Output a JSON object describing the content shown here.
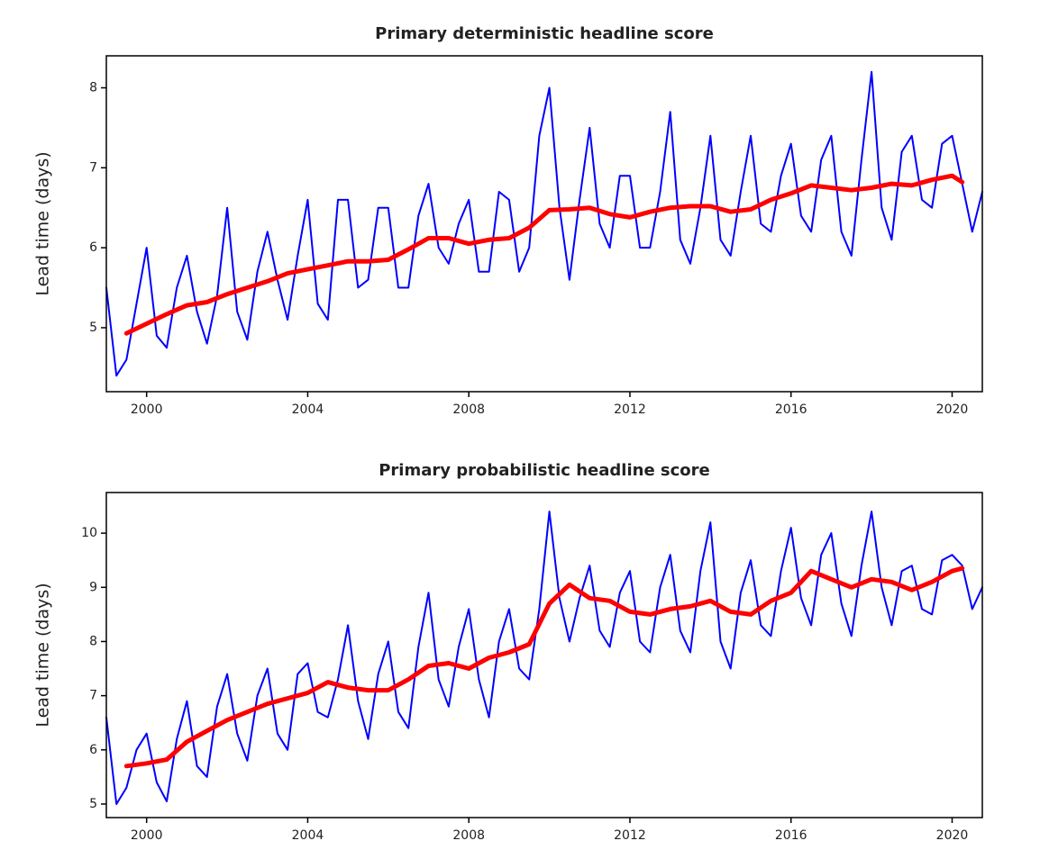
{
  "chart_data": [
    {
      "type": "line",
      "title": "Primary deterministic headline score",
      "ylabel": "Lead time (days)",
      "xlim": [
        1999,
        2020.75
      ],
      "xticks": [
        2000,
        2004,
        2008,
        2012,
        2016,
        2020
      ],
      "ylim": [
        4.2,
        8.4
      ],
      "yticks": [
        5,
        6,
        7,
        8
      ],
      "grid": false,
      "series": [
        {
          "color": "#0000ff",
          "width": 2,
          "x": [
            1999,
            1999.25,
            1999.5,
            1999.75,
            2000,
            2000.25,
            2000.5,
            2000.75,
            2001,
            2001.25,
            2001.5,
            2001.75,
            2002,
            2002.25,
            2002.5,
            2002.75,
            2003,
            2003.25,
            2003.5,
            2003.75,
            2004,
            2004.25,
            2004.5,
            2004.75,
            2005,
            2005.25,
            2005.5,
            2005.75,
            2006,
            2006.25,
            2006.5,
            2006.75,
            2007,
            2007.25,
            2007.5,
            2007.75,
            2008,
            2008.25,
            2008.5,
            2008.75,
            2009,
            2009.25,
            2009.5,
            2009.75,
            2010,
            2010.25,
            2010.5,
            2010.75,
            2011,
            2011.25,
            2011.5,
            2011.75,
            2012,
            2012.25,
            2012.5,
            2012.75,
            2013,
            2013.25,
            2013.5,
            2013.75,
            2014,
            2014.25,
            2014.5,
            2014.75,
            2015,
            2015.25,
            2015.5,
            2015.75,
            2016,
            2016.25,
            2016.5,
            2016.75,
            2017,
            2017.25,
            2017.5,
            2017.75,
            2018,
            2018.25,
            2018.5,
            2018.75,
            2019,
            2019.25,
            2019.5,
            2019.75,
            2020,
            2020.25,
            2020.5,
            2020.75
          ],
          "values": [
            5.5,
            4.4,
            4.6,
            5.3,
            6.0,
            4.9,
            4.75,
            5.5,
            5.9,
            5.2,
            4.8,
            5.4,
            6.5,
            5.2,
            4.85,
            5.7,
            6.2,
            5.6,
            5.1,
            5.9,
            6.6,
            5.3,
            5.1,
            6.6,
            6.6,
            5.5,
            5.6,
            6.5,
            6.5,
            5.5,
            5.5,
            6.4,
            6.8,
            6.0,
            5.8,
            6.3,
            6.6,
            5.7,
            5.7,
            6.7,
            6.6,
            5.7,
            6.0,
            7.4,
            8.0,
            6.5,
            5.6,
            6.6,
            7.5,
            6.3,
            6.0,
            6.9,
            6.9,
            6.0,
            6.0,
            6.7,
            7.7,
            6.1,
            5.8,
            6.5,
            7.4,
            6.1,
            5.9,
            6.7,
            7.4,
            6.3,
            6.2,
            6.9,
            7.3,
            6.4,
            6.2,
            7.1,
            7.4,
            6.2,
            5.9,
            7.1,
            8.2,
            6.5,
            6.1,
            7.2,
            7.4,
            6.6,
            6.5,
            7.3,
            7.4,
            6.8,
            6.2,
            6.7
          ]
        },
        {
          "color": "#ff0000",
          "width": 5,
          "x": [
            1999.5,
            2000,
            2000.5,
            2001,
            2001.5,
            2002,
            2002.5,
            2003,
            2003.5,
            2004,
            2004.5,
            2005,
            2005.5,
            2006,
            2006.5,
            2007,
            2007.5,
            2008,
            2008.5,
            2009,
            2009.5,
            2010,
            2010.5,
            2011,
            2011.5,
            2012,
            2012.5,
            2013,
            2013.5,
            2014,
            2014.5,
            2015,
            2015.5,
            2016,
            2016.5,
            2017,
            2017.5,
            2018,
            2018.5,
            2019,
            2019.5,
            2020,
            2020.25
          ],
          "values": [
            4.93,
            5.05,
            5.17,
            5.28,
            5.32,
            5.42,
            5.5,
            5.58,
            5.68,
            5.73,
            5.78,
            5.83,
            5.83,
            5.85,
            5.98,
            6.12,
            6.12,
            6.05,
            6.1,
            6.12,
            6.25,
            6.47,
            6.48,
            6.5,
            6.42,
            6.38,
            6.45,
            6.5,
            6.52,
            6.52,
            6.45,
            6.48,
            6.6,
            6.68,
            6.78,
            6.75,
            6.72,
            6.75,
            6.8,
            6.78,
            6.85,
            6.9,
            6.82
          ]
        }
      ]
    },
    {
      "type": "line",
      "title": "Primary probabilistic headline score",
      "ylabel": "Lead time (days)",
      "xlim": [
        1999,
        2020.75
      ],
      "xticks": [
        2000,
        2004,
        2008,
        2012,
        2016,
        2020
      ],
      "ylim": [
        4.75,
        10.75
      ],
      "yticks": [
        5,
        6,
        7,
        8,
        9,
        10
      ],
      "grid": false,
      "series": [
        {
          "color": "#0000ff",
          "width": 2,
          "x": [
            1999,
            1999.25,
            1999.5,
            1999.75,
            2000,
            2000.25,
            2000.5,
            2000.75,
            2001,
            2001.25,
            2001.5,
            2001.75,
            2002,
            2002.25,
            2002.5,
            2002.75,
            2003,
            2003.25,
            2003.5,
            2003.75,
            2004,
            2004.25,
            2004.5,
            2004.75,
            2005,
            2005.25,
            2005.5,
            2005.75,
            2006,
            2006.25,
            2006.5,
            2006.75,
            2007,
            2007.25,
            2007.5,
            2007.75,
            2008,
            2008.25,
            2008.5,
            2008.75,
            2009,
            2009.25,
            2009.5,
            2009.75,
            2010,
            2010.25,
            2010.5,
            2010.75,
            2011,
            2011.25,
            2011.5,
            2011.75,
            2012,
            2012.25,
            2012.5,
            2012.75,
            2013,
            2013.25,
            2013.5,
            2013.75,
            2014,
            2014.25,
            2014.5,
            2014.75,
            2015,
            2015.25,
            2015.5,
            2015.75,
            2016,
            2016.25,
            2016.5,
            2016.75,
            2017,
            2017.25,
            2017.5,
            2017.75,
            2018,
            2018.25,
            2018.5,
            2018.75,
            2019,
            2019.25,
            2019.5,
            2019.75,
            2020,
            2020.25,
            2020.5,
            2020.75
          ],
          "values": [
            6.6,
            5.0,
            5.3,
            6.0,
            6.3,
            5.4,
            5.05,
            6.2,
            6.9,
            5.7,
            5.5,
            6.8,
            7.4,
            6.3,
            5.8,
            7.0,
            7.5,
            6.3,
            6.0,
            7.4,
            7.6,
            6.7,
            6.6,
            7.3,
            8.3,
            6.9,
            6.2,
            7.4,
            8.0,
            6.7,
            6.4,
            7.9,
            8.9,
            7.3,
            6.8,
            7.9,
            8.6,
            7.3,
            6.6,
            8.0,
            8.6,
            7.5,
            7.3,
            8.6,
            10.4,
            8.8,
            8.0,
            8.8,
            9.4,
            8.2,
            7.9,
            8.9,
            9.3,
            8.0,
            7.8,
            9.0,
            9.6,
            8.2,
            7.8,
            9.3,
            10.2,
            8.0,
            7.5,
            8.9,
            9.5,
            8.3,
            8.1,
            9.3,
            10.1,
            8.8,
            8.3,
            9.6,
            10.0,
            8.7,
            8.1,
            9.4,
            10.4,
            9.0,
            8.3,
            9.3,
            9.4,
            8.6,
            8.5,
            9.5,
            9.6,
            9.4,
            8.6,
            9.0
          ]
        },
        {
          "color": "#ff0000",
          "width": 5,
          "x": [
            1999.5,
            2000,
            2000.5,
            2001,
            2001.5,
            2002,
            2002.5,
            2003,
            2003.5,
            2004,
            2004.5,
            2005,
            2005.5,
            2006,
            2006.5,
            2007,
            2007.5,
            2008,
            2008.5,
            2009,
            2009.5,
            2010,
            2010.5,
            2011,
            2011.5,
            2012,
            2012.5,
            2013,
            2013.5,
            2014,
            2014.5,
            2015,
            2015.5,
            2016,
            2016.5,
            2017,
            2017.5,
            2018,
            2018.5,
            2019,
            2019.5,
            2020,
            2020.25
          ],
          "values": [
            5.7,
            5.75,
            5.82,
            6.15,
            6.35,
            6.55,
            6.7,
            6.85,
            6.95,
            7.05,
            7.25,
            7.15,
            7.1,
            7.1,
            7.3,
            7.55,
            7.6,
            7.5,
            7.7,
            7.8,
            7.95,
            8.7,
            9.05,
            8.8,
            8.75,
            8.55,
            8.5,
            8.6,
            8.65,
            8.75,
            8.55,
            8.5,
            8.75,
            8.9,
            9.3,
            9.15,
            9.0,
            9.15,
            9.1,
            8.95,
            9.1,
            9.3,
            9.35
          ]
        }
      ]
    }
  ]
}
